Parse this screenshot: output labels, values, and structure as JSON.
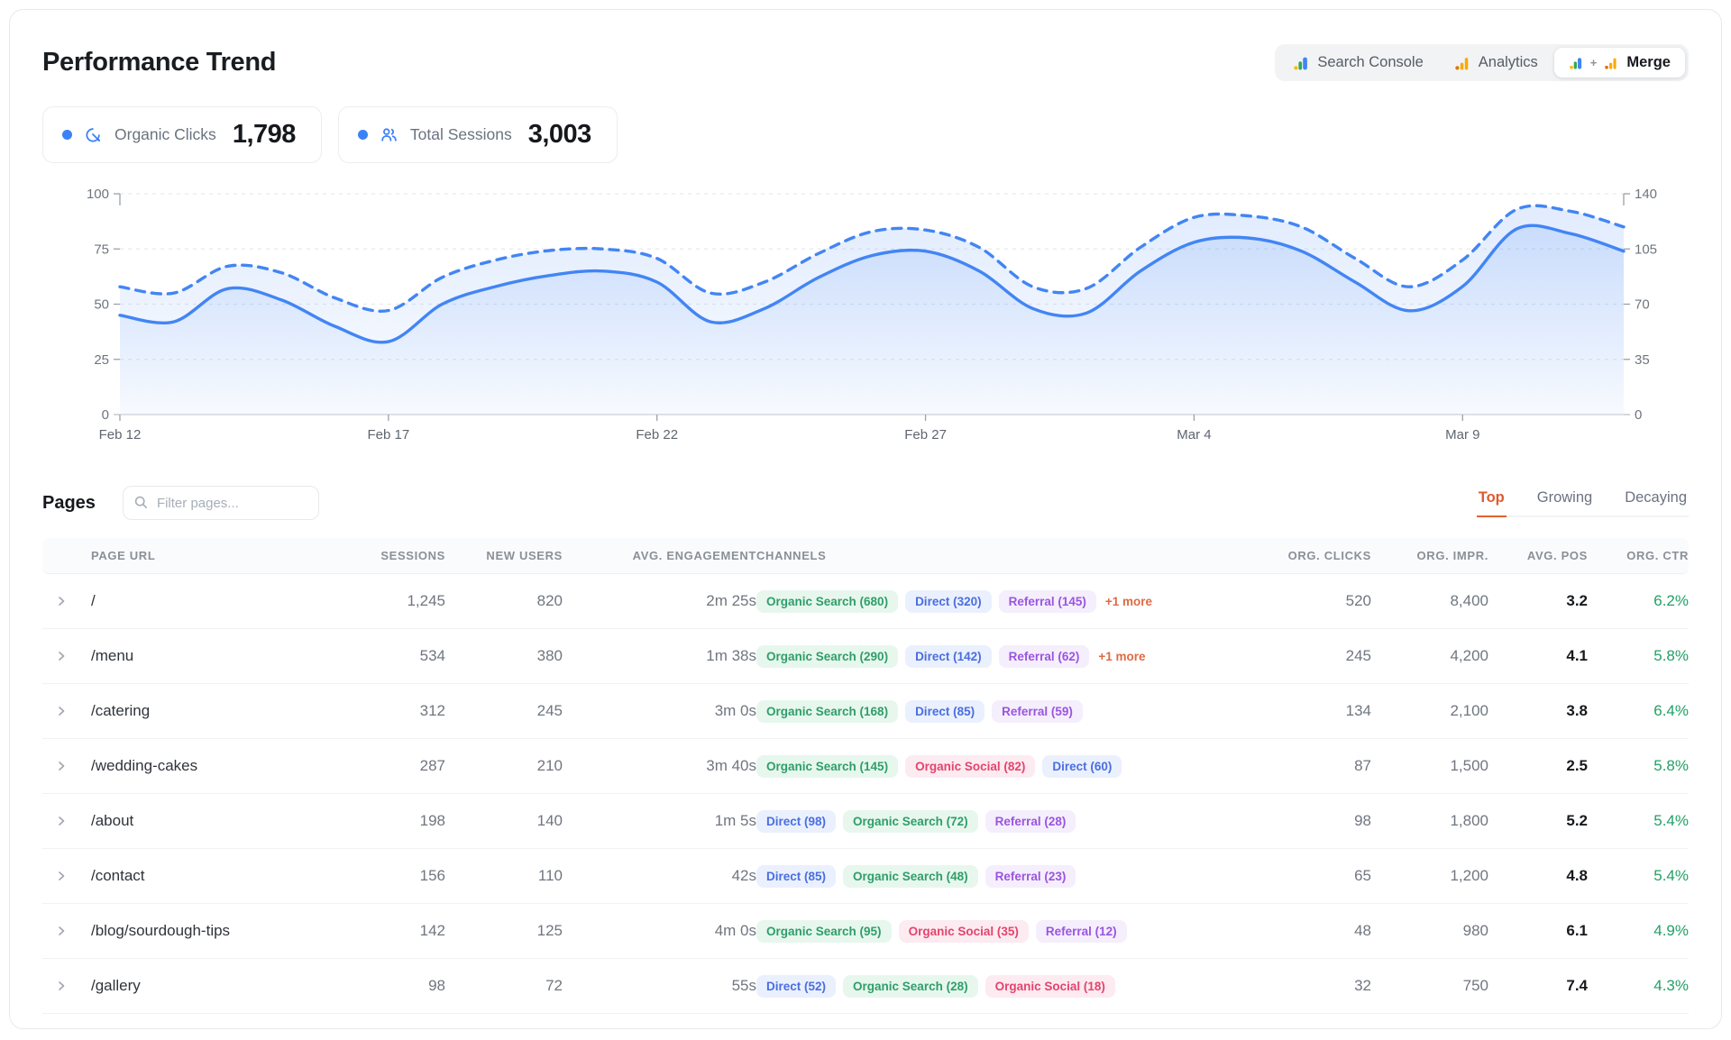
{
  "header": {
    "title": "Performance Trend",
    "source_toggle": {
      "selected": "Merge",
      "options": [
        {
          "label": "Search Console"
        },
        {
          "label": "Analytics"
        },
        {
          "label": "Merge"
        }
      ],
      "merge_separator": "+"
    }
  },
  "legend": [
    {
      "label": "Organic Clicks",
      "value": "1,798",
      "dot_color": "#3b82f6",
      "icon": "click-target-icon"
    },
    {
      "label": "Total Sessions",
      "value": "3,003",
      "dot_color": "#3b82f6",
      "icon": "users-icon"
    }
  ],
  "chart_data": {
    "type": "line",
    "title": "Performance Trend",
    "x": [
      "Feb 12",
      "Feb 13",
      "Feb 14",
      "Feb 15",
      "Feb 16",
      "Feb 17",
      "Feb 18",
      "Feb 19",
      "Feb 20",
      "Feb 21",
      "Feb 22",
      "Feb 23",
      "Feb 24",
      "Feb 25",
      "Feb 26",
      "Feb 27",
      "Feb 28",
      "Mar 1",
      "Mar 2",
      "Mar 3",
      "Mar 4",
      "Mar 5",
      "Mar 6",
      "Mar 7",
      "Mar 8",
      "Mar 9",
      "Mar 10",
      "Mar 11",
      "Mar 12"
    ],
    "x_tick_labels": [
      "Feb 12",
      "Feb 17",
      "Feb 22",
      "Feb 27",
      "Mar 4",
      "Mar 9"
    ],
    "x_tick_indices": [
      0,
      5,
      10,
      15,
      20,
      25
    ],
    "left_axis": {
      "ticks": [
        0,
        25,
        50,
        75,
        100
      ],
      "range": [
        0,
        100
      ]
    },
    "right_axis": {
      "ticks": [
        0,
        35,
        70,
        105,
        140
      ],
      "range": [
        0,
        140
      ]
    },
    "grid": "dashed-horizontal",
    "series": [
      {
        "name": "Organic Clicks",
        "axis": "left",
        "style": "solid",
        "color": "#4285f4",
        "fill": true,
        "values": [
          45,
          42,
          57,
          52,
          40,
          33,
          50,
          58,
          63,
          65,
          60,
          42,
          48,
          62,
          72,
          74,
          65,
          48,
          46,
          65,
          78,
          80,
          74,
          60,
          47,
          58,
          84,
          82,
          74
        ]
      },
      {
        "name": "Total Sessions",
        "axis": "right",
        "style": "dashed",
        "color": "#4285f4",
        "fill": true,
        "values": [
          81,
          77,
          94,
          90,
          74,
          66,
          87,
          98,
          104,
          105,
          99,
          77,
          84,
          102,
          116,
          117,
          106,
          81,
          80,
          106,
          125,
          126,
          119,
          99,
          81,
          98,
          130,
          129,
          119
        ]
      }
    ]
  },
  "pages": {
    "title": "Pages",
    "filter_placeholder": "Filter pages...",
    "tabs": [
      {
        "label": "Top",
        "active": true
      },
      {
        "label": "Growing",
        "active": false
      },
      {
        "label": "Decaying",
        "active": false
      }
    ],
    "columns": [
      "PAGE URL",
      "SESSIONS",
      "NEW USERS",
      "AVG. ENGAGEMENT",
      "CHANNELS",
      "ORG. CLICKS",
      "ORG. IMPR.",
      "AVG. POS",
      "ORG. CTR"
    ],
    "rows": [
      {
        "url": "/",
        "sessions": "1,245",
        "new_users": "820",
        "avg_engagement": "2m 25s",
        "channels": [
          {
            "label": "Organic Search (680)",
            "type": "organic-search"
          },
          {
            "label": "Direct (320)",
            "type": "direct"
          },
          {
            "label": "Referral (145)",
            "type": "referral"
          },
          {
            "label": "+1 more",
            "type": "more"
          }
        ],
        "org_clicks": "520",
        "org_impr": "8,400",
        "avg_pos": "3.2",
        "org_ctr": "6.2%"
      },
      {
        "url": "/menu",
        "sessions": "534",
        "new_users": "380",
        "avg_engagement": "1m 38s",
        "channels": [
          {
            "label": "Organic Search (290)",
            "type": "organic-search"
          },
          {
            "label": "Direct (142)",
            "type": "direct"
          },
          {
            "label": "Referral (62)",
            "type": "referral"
          },
          {
            "label": "+1 more",
            "type": "more"
          }
        ],
        "org_clicks": "245",
        "org_impr": "4,200",
        "avg_pos": "4.1",
        "org_ctr": "5.8%"
      },
      {
        "url": "/catering",
        "sessions": "312",
        "new_users": "245",
        "avg_engagement": "3m 0s",
        "channels": [
          {
            "label": "Organic Search (168)",
            "type": "organic-search"
          },
          {
            "label": "Direct (85)",
            "type": "direct"
          },
          {
            "label": "Referral (59)",
            "type": "referral"
          }
        ],
        "org_clicks": "134",
        "org_impr": "2,100",
        "avg_pos": "3.8",
        "org_ctr": "6.4%"
      },
      {
        "url": "/wedding-cakes",
        "sessions": "287",
        "new_users": "210",
        "avg_engagement": "3m 40s",
        "channels": [
          {
            "label": "Organic Search (145)",
            "type": "organic-search"
          },
          {
            "label": "Organic Social (82)",
            "type": "organic-social"
          },
          {
            "label": "Direct (60)",
            "type": "direct"
          }
        ],
        "org_clicks": "87",
        "org_impr": "1,500",
        "avg_pos": "2.5",
        "org_ctr": "5.8%"
      },
      {
        "url": "/about",
        "sessions": "198",
        "new_users": "140",
        "avg_engagement": "1m 5s",
        "channels": [
          {
            "label": "Direct (98)",
            "type": "direct"
          },
          {
            "label": "Organic Search (72)",
            "type": "organic-search"
          },
          {
            "label": "Referral (28)",
            "type": "referral"
          }
        ],
        "org_clicks": "98",
        "org_impr": "1,800",
        "avg_pos": "5.2",
        "org_ctr": "5.4%"
      },
      {
        "url": "/contact",
        "sessions": "156",
        "new_users": "110",
        "avg_engagement": "42s",
        "channels": [
          {
            "label": "Direct (85)",
            "type": "direct"
          },
          {
            "label": "Organic Search (48)",
            "type": "organic-search"
          },
          {
            "label": "Referral (23)",
            "type": "referral"
          }
        ],
        "org_clicks": "65",
        "org_impr": "1,200",
        "avg_pos": "4.8",
        "org_ctr": "5.4%"
      },
      {
        "url": "/blog/sourdough-tips",
        "sessions": "142",
        "new_users": "125",
        "avg_engagement": "4m 0s",
        "channels": [
          {
            "label": "Organic Search (95)",
            "type": "organic-search"
          },
          {
            "label": "Organic Social (35)",
            "type": "organic-social"
          },
          {
            "label": "Referral (12)",
            "type": "referral"
          }
        ],
        "org_clicks": "48",
        "org_impr": "980",
        "avg_pos": "6.1",
        "org_ctr": "4.9%"
      },
      {
        "url": "/gallery",
        "sessions": "98",
        "new_users": "72",
        "avg_engagement": "55s",
        "channels": [
          {
            "label": "Direct (52)",
            "type": "direct"
          },
          {
            "label": "Organic Search (28)",
            "type": "organic-search"
          },
          {
            "label": "Organic Social (18)",
            "type": "organic-social"
          }
        ],
        "org_clicks": "32",
        "org_impr": "750",
        "avg_pos": "7.4",
        "org_ctr": "4.3%"
      }
    ]
  },
  "colors": {
    "line_blue": "#4285f4",
    "legend_dot": "#3b82f6",
    "tab_active": "#df5a2f",
    "ctr_green": "#23a066",
    "chip_organic_search": {
      "text": "#2f9e68",
      "bg": "#e7f7ee"
    },
    "chip_direct": {
      "text": "#4a6ee0",
      "bg": "#eaf0fd"
    },
    "chip_referral": {
      "text": "#9a55e0",
      "bg": "#f5eefc"
    },
    "chip_organic_social": {
      "text": "#e4446e",
      "bg": "#fcebf0"
    },
    "chip_more_text": "#df6a44"
  }
}
